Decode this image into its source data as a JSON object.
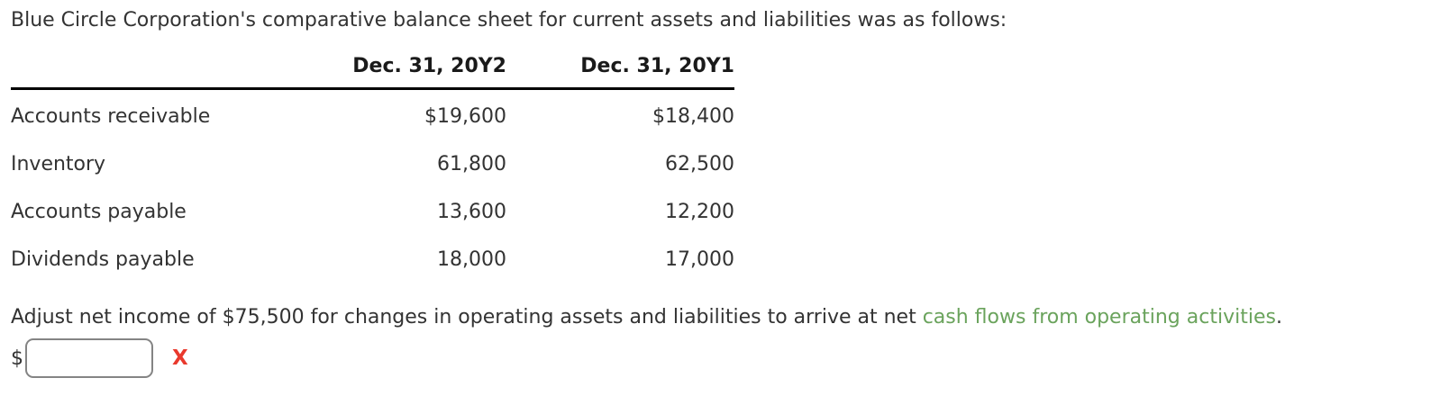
{
  "intro": "Blue Circle Corporation's comparative balance sheet for current assets and liabilities was as follows:",
  "table": {
    "columns": [
      "Dec. 31, 20Y2",
      "Dec. 31, 20Y1"
    ],
    "rows": [
      {
        "label": "Accounts receivable",
        "y2": "$19,600",
        "y1": "$18,400"
      },
      {
        "label": "Inventory",
        "y2": "61,800",
        "y1": "62,500"
      },
      {
        "label": "Accounts payable",
        "y2": "13,600",
        "y1": "12,200"
      },
      {
        "label": "Dividends payable",
        "y2": "18,000",
        "y1": "17,000"
      }
    ]
  },
  "instruction": {
    "prefix": "Adjust net income of $75,500 for changes in operating assets and liabilities to arrive at net ",
    "link_text": "cash flows from operating activities",
    "suffix": "."
  },
  "answer": {
    "currency_symbol": "$",
    "input_value": "",
    "incorrect_mark": "X"
  },
  "colors": {
    "text": "#333333",
    "link_green": "#6aa35c",
    "incorrect_red": "#e9392d",
    "table_rule": "#000000",
    "input_border": "#848484"
  }
}
